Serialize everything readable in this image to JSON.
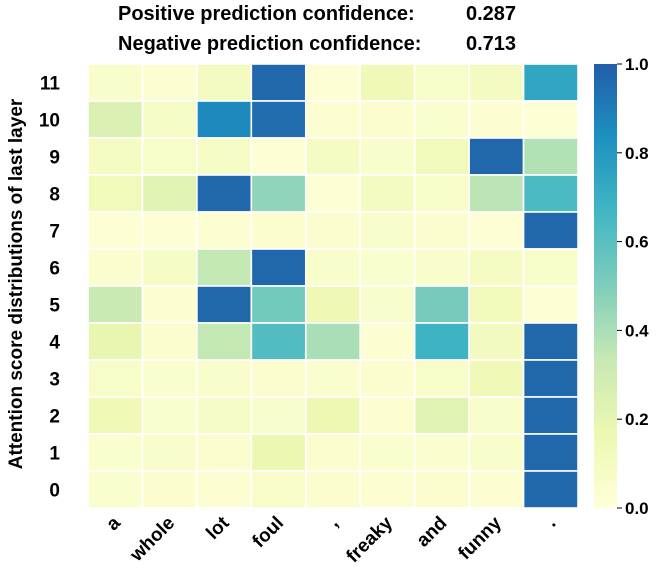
{
  "header": {
    "positive_label": "Positive prediction confidence:",
    "positive_value": "0.287",
    "negative_label": "Negative prediction confidence:",
    "negative_value": "0.713"
  },
  "chart_data": {
    "type": "heatmap",
    "title": "",
    "xlabel": "",
    "ylabel": "Attention score distributions of last layer",
    "x_categories": [
      "a",
      "whole",
      "lot",
      "foul",
      ",",
      "freaky",
      "and",
      "funny",
      "."
    ],
    "y_categories": [
      "11",
      "10",
      "9",
      "8",
      "7",
      "6",
      "5",
      "4",
      "3",
      "2",
      "1",
      "0"
    ],
    "values": [
      [
        0.06,
        0.03,
        0.1,
        0.97,
        0.02,
        0.14,
        0.07,
        0.1,
        0.74
      ],
      [
        0.25,
        0.08,
        0.86,
        0.95,
        0.03,
        0.04,
        0.05,
        0.03,
        0.02
      ],
      [
        0.09,
        0.07,
        0.08,
        0.02,
        0.09,
        0.06,
        0.13,
        0.97,
        0.38
      ],
      [
        0.13,
        0.22,
        0.97,
        0.46,
        0.02,
        0.1,
        0.07,
        0.36,
        0.64
      ],
      [
        0.02,
        0.02,
        0.03,
        0.04,
        0.04,
        0.06,
        0.04,
        0.02,
        0.97
      ],
      [
        0.04,
        0.08,
        0.34,
        0.97,
        0.06,
        0.05,
        0.06,
        0.09,
        0.07
      ],
      [
        0.32,
        0.03,
        0.97,
        0.53,
        0.15,
        0.06,
        0.52,
        0.13,
        0.02
      ],
      [
        0.19,
        0.04,
        0.34,
        0.62,
        0.4,
        0.03,
        0.68,
        0.11,
        0.97
      ],
      [
        0.07,
        0.05,
        0.06,
        0.04,
        0.05,
        0.04,
        0.07,
        0.14,
        0.97
      ],
      [
        0.14,
        0.05,
        0.08,
        0.06,
        0.16,
        0.03,
        0.22,
        0.06,
        0.97
      ],
      [
        0.05,
        0.06,
        0.04,
        0.17,
        0.04,
        0.05,
        0.05,
        0.06,
        0.97
      ],
      [
        0.05,
        0.04,
        0.03,
        0.07,
        0.04,
        0.03,
        0.04,
        0.03,
        0.97
      ]
    ],
    "colormap": "YlGnBu",
    "vmin": 0.0,
    "vmax": 1.0,
    "colorbar_ticks": [
      "0.0",
      "0.2",
      "0.4",
      "0.6",
      "0.8",
      "1.0"
    ],
    "colorbar_tick_values": [
      0.0,
      0.2,
      0.4,
      0.6,
      0.8,
      1.0
    ],
    "colormap_stops": [
      "#ffffd9",
      "#edf8b1",
      "#c7e9b4",
      "#7fcdbb",
      "#41b6c4",
      "#1d91c0",
      "#225ea8"
    ]
  }
}
